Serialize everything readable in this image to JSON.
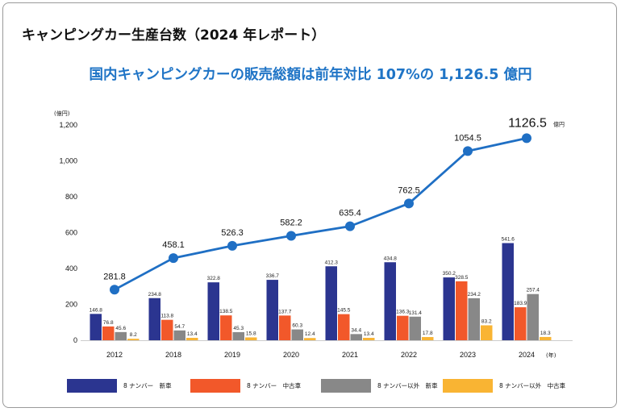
{
  "header": {
    "title": "キャンピングカー生産台数（2024 年レポート）",
    "subtitle": "国内キャンピングカーの販売総額は前年対比 107%の 1,126.5 億円"
  },
  "chart_data": {
    "type": "bar",
    "combo_line_series": "販売総額",
    "categories": [
      "2012",
      "2018",
      "2019",
      "2020",
      "2021",
      "2022",
      "2023",
      "2024"
    ],
    "x_suffix": "(年)",
    "y_unit": "(億円)",
    "ylim": [
      0,
      1200
    ],
    "yticks": [
      0,
      200,
      400,
      600,
      800,
      1000,
      1200
    ],
    "ytick_labels": [
      "0",
      "200",
      "400",
      "600",
      "800",
      "1,000",
      "1,200"
    ],
    "grid": false,
    "legend_position": "bottom",
    "series": [
      {
        "name": "8 ナンバー　新車",
        "color": "#2b3590",
        "values": [
          146.8,
          234.8,
          322.8,
          336.7,
          412.3,
          434.8,
          350.2,
          541.6
        ],
        "labels": [
          "146.8",
          "234.8",
          "322.8",
          "336.7",
          "412.3",
          "434.8",
          "350.2",
          "541.6"
        ]
      },
      {
        "name": "8 ナンバー　中古車",
        "color": "#f2582a",
        "values": [
          76.8,
          113.8,
          138.5,
          137.7,
          145.5,
          136.3,
          328.5,
          183.9
        ],
        "labels": [
          "76.8",
          "113.8",
          "138.5",
          "137.7",
          "145.5",
          "136.3",
          "328.5",
          "183.9"
        ]
      },
      {
        "name": "8 ナンバー以外　新車",
        "color": "#888888",
        "values": [
          45.6,
          54.7,
          45.3,
          60.3,
          34.4,
          131.4,
          234.2,
          257.4
        ],
        "labels": [
          "45.6",
          "54.7",
          "45.3",
          "60.3",
          "34.4",
          "131.4",
          "234.2",
          "257.4"
        ]
      },
      {
        "name": "8 ナンバー以外　中古車",
        "color": "#f9b433",
        "values": [
          8.2,
          13.4,
          15.8,
          12.4,
          13.4,
          17.8,
          83.2,
          18.3
        ],
        "labels": [
          "8.2",
          "13.4",
          "15.8",
          "12.4",
          "13.4",
          "17.8",
          "83.2",
          "18.3"
        ]
      }
    ],
    "line": {
      "color": "#1f6fc4",
      "values": [
        281.8,
        458.1,
        526.3,
        582.2,
        635.4,
        762.5,
        1054.5,
        1126.5
      ],
      "labels": [
        "281.8",
        "458.1",
        "526.3",
        "582.2",
        "635.4",
        "762.5",
        "1054.5",
        "1126.5"
      ],
      "last_unit": "億円"
    }
  }
}
